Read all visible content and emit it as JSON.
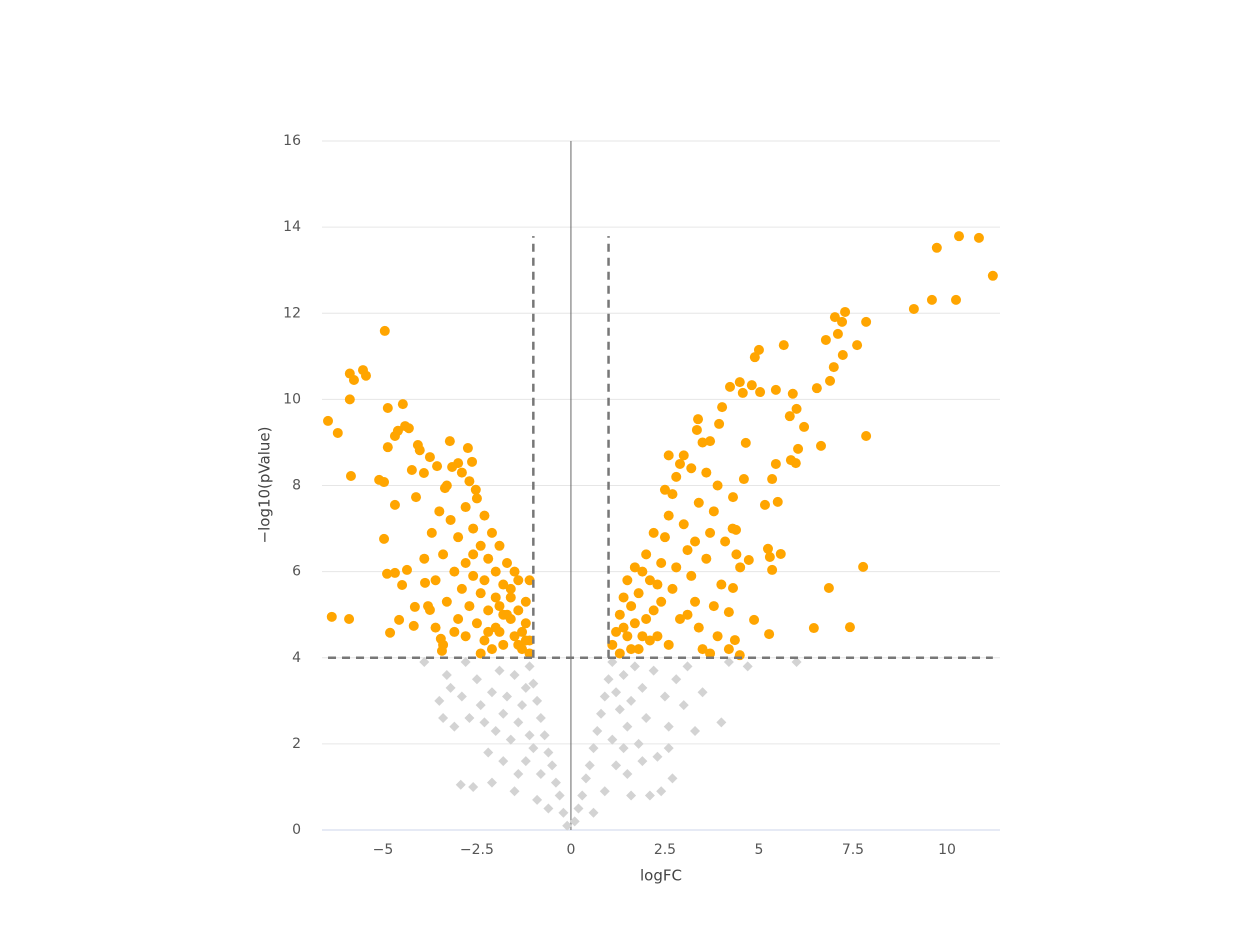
{
  "chart_data": {
    "type": "scatter",
    "xlabel": "logFC",
    "ylabel": "−log10(pValue)",
    "xlim": [
      -6.62,
      11.41
    ],
    "ylim": [
      0,
      16
    ],
    "xticks": [
      {
        "value": -5,
        "label": "−5"
      },
      {
        "value": -2.5,
        "label": "−2.5"
      },
      0,
      2.5,
      5,
      7.5,
      10
    ],
    "yticks": [
      0,
      2,
      4,
      6,
      8,
      10,
      12,
      14,
      16
    ],
    "grid": true,
    "zero_line": true,
    "thresholds": {
      "x": [
        -1,
        1
      ],
      "y": 4
    },
    "series": [
      {
        "color": "#d3d3d3",
        "marker": "diamond",
        "x": [
          -0.1,
          -0.2,
          -0.3,
          -0.4,
          -0.5,
          -0.6,
          -0.7,
          -0.8,
          -0.9,
          -1.0,
          -1.1,
          -1.2,
          -1.3,
          -1.4,
          -1.5,
          -1.6,
          -1.7,
          -1.8,
          -1.9,
          -2.0,
          -2.1,
          -2.2,
          -2.4,
          -2.5,
          -2.7,
          -2.9,
          -3.1,
          -3.3,
          -3.5,
          -3.9,
          -2.1,
          -2.6,
          -2.93,
          -1.5,
          -1.2,
          -0.9,
          -1.1,
          -1.4,
          -1.8,
          -2.3,
          -2.8,
          -3.2,
          -3.4,
          -0.6,
          -0.8,
          -1.0,
          0.1,
          0.2,
          0.3,
          0.4,
          0.5,
          0.6,
          0.7,
          0.8,
          0.9,
          1.0,
          1.1,
          1.2,
          1.3,
          1.4,
          1.5,
          1.6,
          1.7,
          1.8,
          1.9,
          2.0,
          2.2,
          2.3,
          2.5,
          2.6,
          2.8,
          3.0,
          3.1,
          3.3,
          3.5,
          4.2,
          4.0,
          4.7,
          6.0,
          2.4,
          1.6,
          1.2,
          0.9,
          1.5,
          1.9,
          2.1,
          2.7,
          0.6,
          1.1,
          1.4,
          2.6
        ],
        "values": [
          0.1,
          0.4,
          0.8,
          1.1,
          1.5,
          1.8,
          2.2,
          2.6,
          3.0,
          3.4,
          3.8,
          3.3,
          2.9,
          2.5,
          3.6,
          2.1,
          3.1,
          2.7,
          3.7,
          2.3,
          3.2,
          1.8,
          2.9,
          3.5,
          2.6,
          3.1,
          2.4,
          3.6,
          3.0,
          3.9,
          1.1,
          1.0,
          1.05,
          0.9,
          1.6,
          0.7,
          2.2,
          1.3,
          1.6,
          2.5,
          3.9,
          3.3,
          2.6,
          0.5,
          1.3,
          1.9,
          0.2,
          0.5,
          0.8,
          1.2,
          1.5,
          1.9,
          2.3,
          2.7,
          3.1,
          3.5,
          3.9,
          3.2,
          2.8,
          3.6,
          2.4,
          3.0,
          3.8,
          2.0,
          3.3,
          2.6,
          3.7,
          1.7,
          3.1,
          2.4,
          3.5,
          2.9,
          3.8,
          2.3,
          3.2,
          3.9,
          2.5,
          3.8,
          3.9,
          0.9,
          0.8,
          1.5,
          0.9,
          1.3,
          1.6,
          0.8,
          1.2,
          0.4,
          2.1,
          1.9,
          1.9
        ]
      },
      {
        "color": "#ffa500",
        "marker": "circle",
        "x": [
          -6.46,
          -6.2,
          -5.88,
          -5.88,
          -5.77,
          -5.53,
          -5.45,
          -4.95,
          -5.85,
          -5.1,
          -4.97,
          -4.87,
          -4.47,
          -6.36,
          -5.9,
          -4.97,
          -4.89,
          -4.68,
          -4.81,
          -4.57,
          -4.6,
          -4.68,
          -4.41,
          -4.87,
          -4.68,
          -4.31,
          -4.23,
          -4.07,
          -4.02,
          -4.36,
          -4.49,
          -4.15,
          -4.18,
          -4.12,
          -3.91,
          -3.75,
          -3.56,
          -3.88,
          -3.75,
          -3.46,
          -3.43,
          -3.22,
          -3.16,
          -3.35,
          -3.0,
          -2.74,
          -2.63,
          -2.53,
          -3.2,
          -3.0,
          -2.8,
          -2.6,
          -2.4,
          -2.2,
          -2.0,
          -1.8,
          -1.6,
          -1.4,
          -1.2,
          -1.1,
          -3.4,
          -3.1,
          -2.9,
          -2.7,
          -2.5,
          -2.3,
          -2.1,
          -1.9,
          -1.7,
          -1.5,
          -1.3,
          -3.6,
          -3.3,
          -3.0,
          -2.8,
          -2.6,
          -2.4,
          -2.2,
          -2.0,
          -1.8,
          -1.6,
          -1.4,
          -1.2,
          -1.1,
          -1.5,
          -1.7,
          -1.9,
          -2.1,
          -2.3,
          -2.5,
          -2.7,
          -2.9,
          -3.3,
          -3.5,
          -3.7,
          -3.9,
          -3.8,
          -3.6,
          -3.4,
          -2.2,
          -1.9,
          -1.3,
          -1.1,
          -2.6,
          -2.0,
          -1.6,
          -2.4,
          -3.1,
          -1.4,
          -2.8,
          -2.3,
          -1.8,
          -1.2,
          9.73,
          10.32,
          10.85,
          11.22,
          9.12,
          9.6,
          10.24,
          7.29,
          7.02,
          7.21,
          7.85,
          6.78,
          7.1,
          7.61,
          7.23,
          5.66,
          5.0,
          4.89,
          6.99,
          6.89,
          6.54,
          5.9,
          5.45,
          4.49,
          4.81,
          4.23,
          5.03,
          4.57,
          6.0,
          5.82,
          6.2,
          7.85,
          6.65,
          4.65,
          6.04,
          5.85,
          5.98,
          5.45,
          5.35,
          5.5,
          5.16,
          5.24,
          5.58,
          5.29,
          5.35,
          4.73,
          7.77,
          6.86,
          7.42,
          6.46,
          5.27,
          4.87,
          4.36,
          4.49,
          4.2,
          4.31,
          4.39,
          4.31,
          4.6,
          4.02,
          3.94,
          3.38,
          3.35,
          3.7,
          1.1,
          1.2,
          1.3,
          1.4,
          1.5,
          1.6,
          1.7,
          1.8,
          1.9,
          2.0,
          2.1,
          2.2,
          2.3,
          2.4,
          2.5,
          2.6,
          2.7,
          2.8,
          2.9,
          3.0,
          3.1,
          3.2,
          3.3,
          3.4,
          3.5,
          3.6,
          3.7,
          3.8,
          3.9,
          1.3,
          1.5,
          1.8,
          2.0,
          2.3,
          2.6,
          2.9,
          2.7,
          2.4,
          2.1,
          1.9,
          1.6,
          1.4,
          3.1,
          3.3,
          3.0,
          3.4,
          2.8,
          2.2,
          1.7,
          2.5,
          3.6,
          3.5,
          2.6,
          3.2,
          4.1,
          4.0,
          3.9,
          3.7,
          4.3,
          4.2,
          3.8,
          4.4,
          4.5
        ],
        "values": [
          9.5,
          9.22,
          10.0,
          10.6,
          10.45,
          10.68,
          10.55,
          11.59,
          8.22,
          8.13,
          8.08,
          9.8,
          9.89,
          4.95,
          4.9,
          6.76,
          5.95,
          5.97,
          4.58,
          4.88,
          9.27,
          9.15,
          9.38,
          8.89,
          7.55,
          9.33,
          8.36,
          8.94,
          8.82,
          6.04,
          5.69,
          5.18,
          4.74,
          7.73,
          8.29,
          8.66,
          8.45,
          5.74,
          5.11,
          4.44,
          4.16,
          9.03,
          8.43,
          7.94,
          8.52,
          8.87,
          8.55,
          7.9,
          7.2,
          6.8,
          7.5,
          7.0,
          6.6,
          6.3,
          6.0,
          5.7,
          5.4,
          5.1,
          4.8,
          4.4,
          6.4,
          6.0,
          5.6,
          5.2,
          4.8,
          4.4,
          4.2,
          4.6,
          5.0,
          4.5,
          4.2,
          5.8,
          5.3,
          4.9,
          4.5,
          5.9,
          5.5,
          5.1,
          4.7,
          4.3,
          4.9,
          4.3,
          5.3,
          5.8,
          6.0,
          6.2,
          6.6,
          6.9,
          7.3,
          7.7,
          8.1,
          8.3,
          8.0,
          7.4,
          6.9,
          6.3,
          5.2,
          4.7,
          4.3,
          4.6,
          5.2,
          4.6,
          4.1,
          6.4,
          5.4,
          5.6,
          4.1,
          4.6,
          5.8,
          6.2,
          5.8,
          5.0,
          4.4,
          13.52,
          13.79,
          13.75,
          12.87,
          12.1,
          12.31,
          12.31,
          12.03,
          11.91,
          11.8,
          11.8,
          11.38,
          11.52,
          11.26,
          11.03,
          11.26,
          11.15,
          10.98,
          10.75,
          10.43,
          10.26,
          10.13,
          10.22,
          10.4,
          10.33,
          10.29,
          10.17,
          10.15,
          9.78,
          9.61,
          9.36,
          9.15,
          8.92,
          8.99,
          8.85,
          8.59,
          8.52,
          8.5,
          8.15,
          7.62,
          7.55,
          6.53,
          6.41,
          6.34,
          6.04,
          6.27,
          6.11,
          5.62,
          4.71,
          4.69,
          4.55,
          4.88,
          4.41,
          4.06,
          5.06,
          5.62,
          6.97,
          7.73,
          8.15,
          9.82,
          9.43,
          9.54,
          9.29,
          9.03,
          4.3,
          4.6,
          5.0,
          5.4,
          5.8,
          4.2,
          4.8,
          5.5,
          6.0,
          6.4,
          4.4,
          5.1,
          5.7,
          6.2,
          6.8,
          7.3,
          7.8,
          8.2,
          8.5,
          7.1,
          6.5,
          5.9,
          5.3,
          4.7,
          4.2,
          6.3,
          6.9,
          7.4,
          8.0,
          4.1,
          4.5,
          4.2,
          4.9,
          4.5,
          4.3,
          4.9,
          5.6,
          5.3,
          5.8,
          4.5,
          5.2,
          4.7,
          5.0,
          6.7,
          8.7,
          7.6,
          6.1,
          6.9,
          6.1,
          7.9,
          8.3,
          9.0,
          8.7,
          8.4,
          6.7,
          5.7,
          4.5,
          4.1,
          7.0,
          4.2,
          5.2,
          6.4,
          6.1
        ]
      }
    ]
  }
}
